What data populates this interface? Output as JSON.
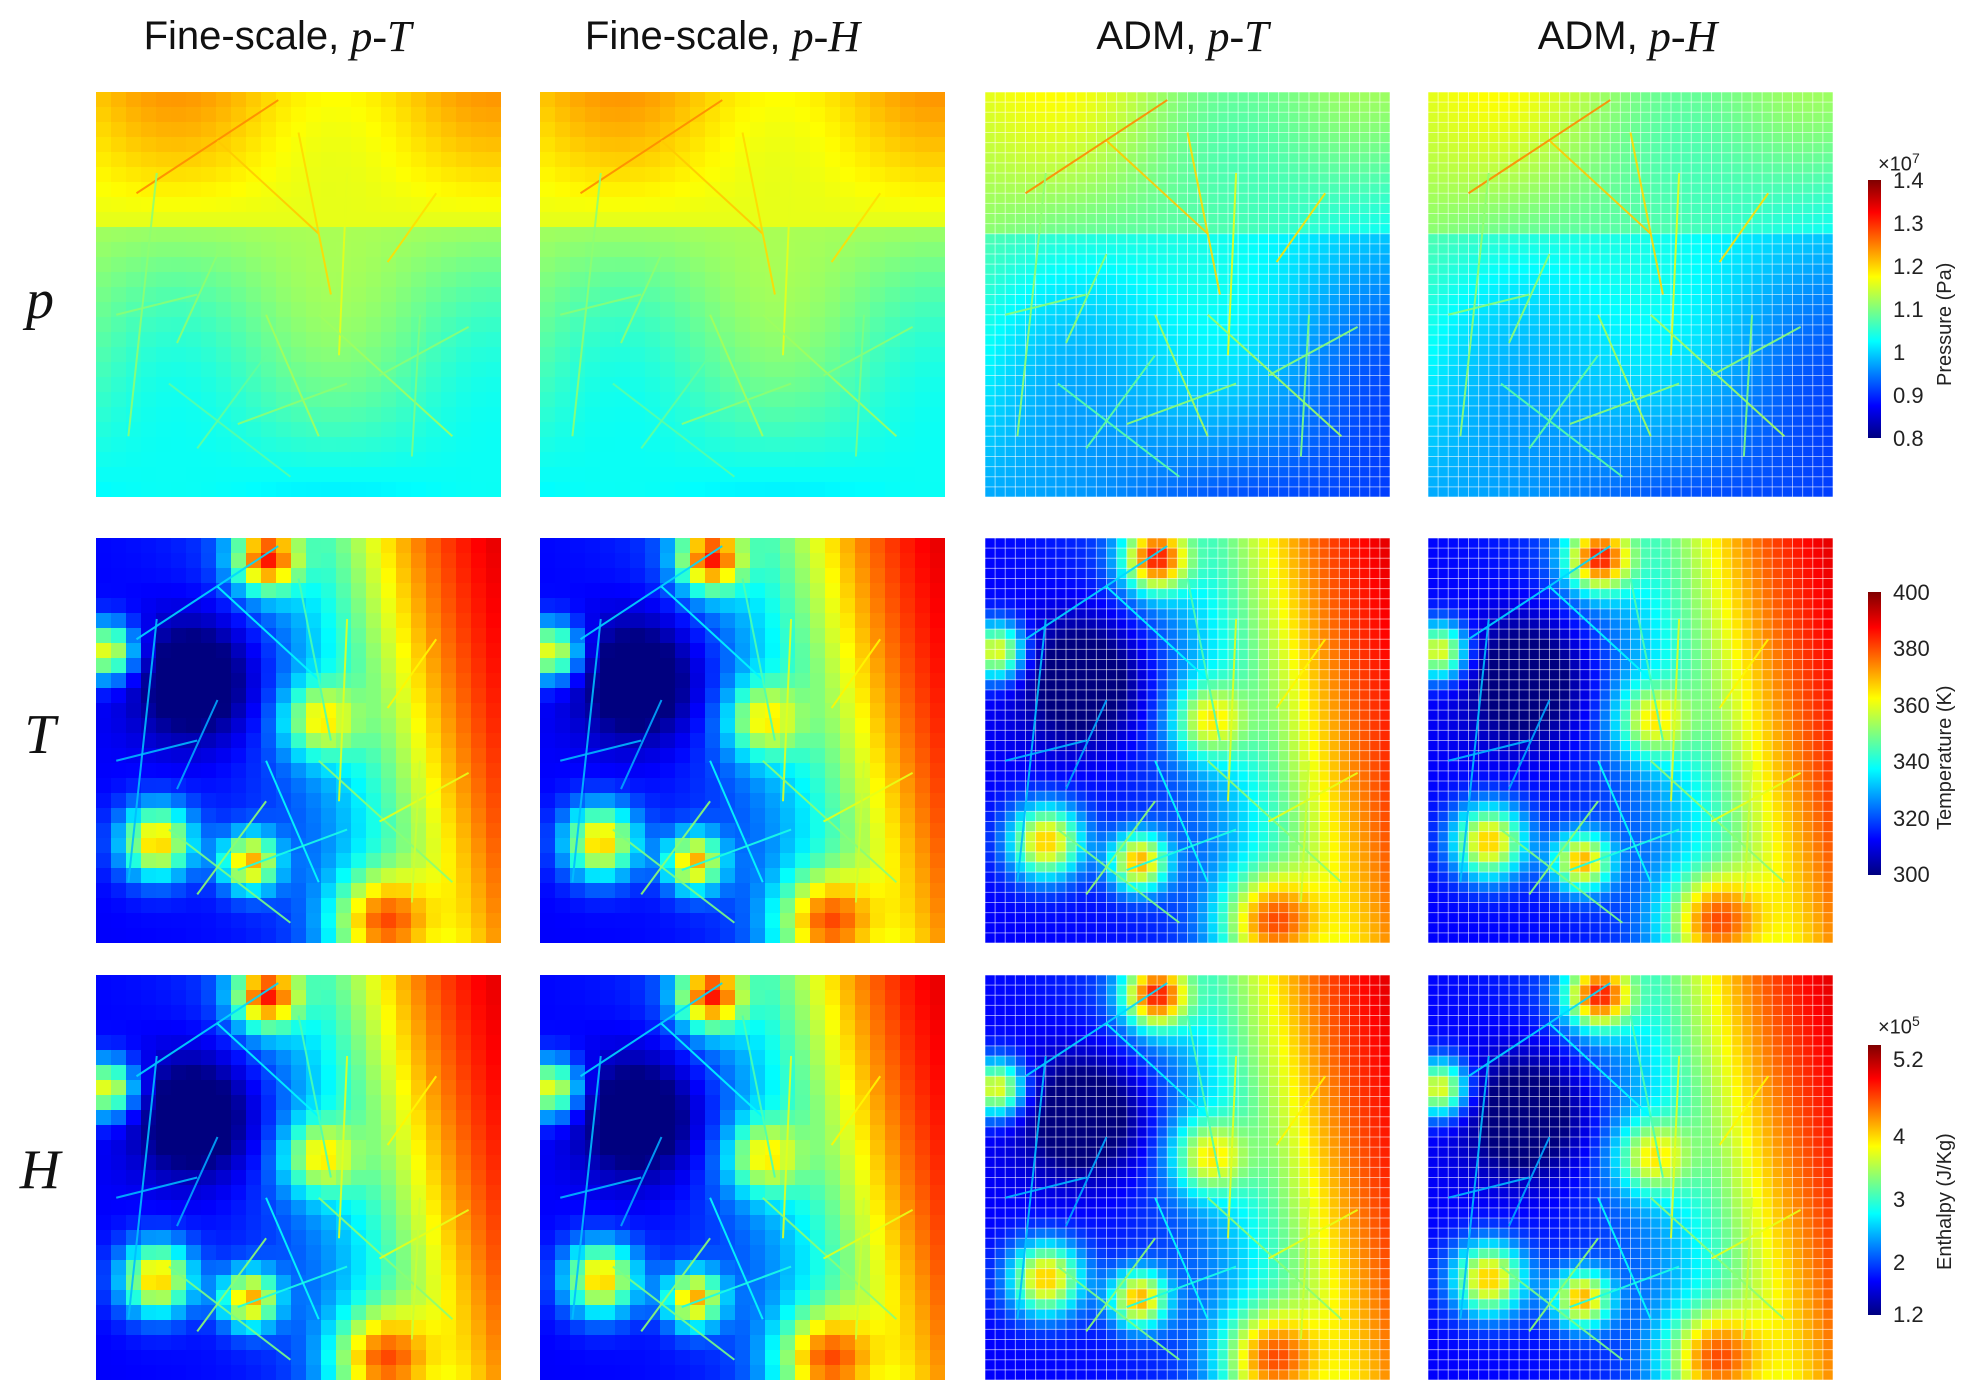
{
  "columns": [
    {
      "prefix": "Fine-scale, ",
      "math": "p-T"
    },
    {
      "prefix": "Fine-scale, ",
      "math": "p-H"
    },
    {
      "prefix": "ADM, ",
      "math": "p-T"
    },
    {
      "prefix": "ADM, ",
      "math": "p-H"
    }
  ],
  "rows": [
    {
      "label": "p"
    },
    {
      "label": "T"
    },
    {
      "label": "H"
    }
  ],
  "colorbars": [
    {
      "multiplier_base": "×10",
      "multiplier_exp": "7",
      "ticks": [
        "1.4",
        "1.3",
        "1.2",
        "1.1",
        "1",
        "0.9",
        "0.8"
      ],
      "label": "Pressure (Pa)"
    },
    {
      "multiplier_base": "",
      "multiplier_exp": "",
      "ticks": [
        "400",
        "380",
        "360",
        "340",
        "320",
        "300"
      ],
      "label": "Temperature (K)"
    },
    {
      "multiplier_base": "×10",
      "multiplier_exp": "5",
      "ticks": [
        "5.2",
        "4",
        "3",
        "2",
        "1.2"
      ],
      "label": "Enthalpy (J/Kg)"
    }
  ],
  "colors": {
    "jet": [
      "#00007f",
      "#0000ff",
      "#007fff",
      "#00ffff",
      "#7fff7f",
      "#ffff00",
      "#ff7f00",
      "#ff0000",
      "#7f0000"
    ]
  }
}
